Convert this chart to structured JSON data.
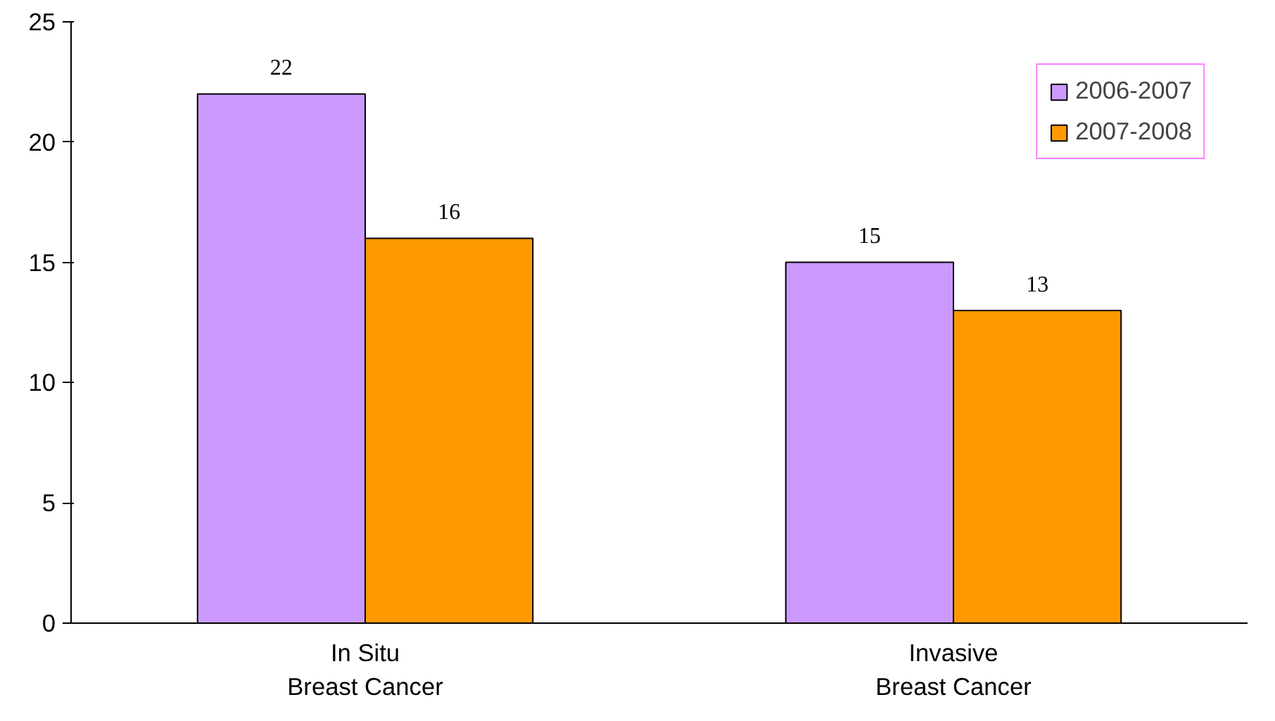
{
  "chart_data": {
    "type": "bar",
    "categories": [
      "In Situ\nBreast Cancer",
      "Invasive\nBreast Cancer"
    ],
    "series": [
      {
        "name": "2006-2007",
        "color": "#cc99ff",
        "values": [
          22,
          15
        ]
      },
      {
        "name": "2007-2008",
        "color": "#ff9900",
        "values": [
          16,
          13
        ]
      }
    ],
    "ylim": [
      0,
      25
    ],
    "yticks": [
      0,
      5,
      10,
      15,
      20,
      25
    ],
    "data_labels": true,
    "legend": "top right",
    "grid": false
  }
}
